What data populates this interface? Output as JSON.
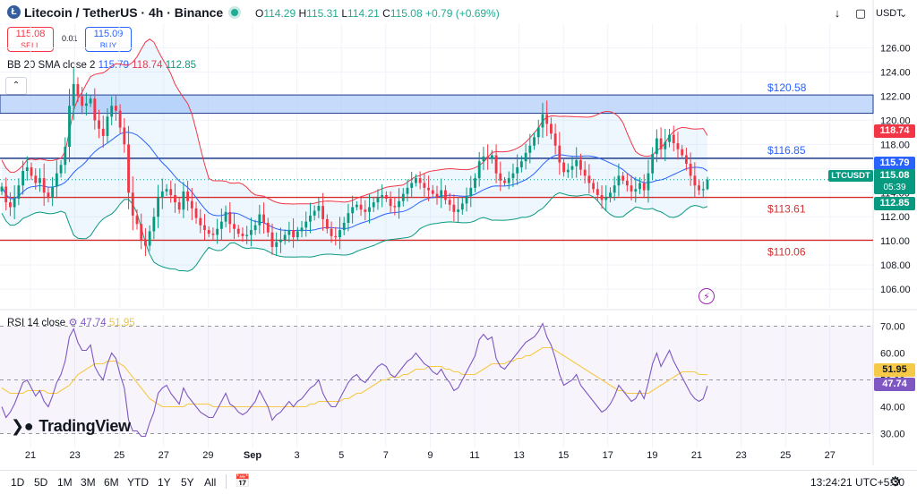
{
  "header": {
    "logo_letter": "Ł",
    "title": "Litecoin / TetherUS · 4h · Binance",
    "ohlc": [
      {
        "key": "O",
        "value": "114.29"
      },
      {
        "key": "H",
        "value": "115.31"
      },
      {
        "key": "L",
        "value": "114.21"
      },
      {
        "key": "C",
        "value": "115.08"
      }
    ],
    "change": "+0.79 (+0.69%)",
    "sell_price": "115.08",
    "sell_label": "SELL",
    "spread": "0.01",
    "buy_price": "115.09",
    "buy_label": "BUY",
    "currency": "USDT",
    "currency_arrow": "⌄"
  },
  "bb_legend": {
    "name": "BB 20 SMA close 2",
    "basis": "115.79",
    "upper": "118.74",
    "lower": "112.85"
  },
  "rsi_legend": {
    "name": "RSI 14 close",
    "rsi": "47.74",
    "ma": "51.95"
  },
  "price_labels": {
    "upper_band": "118.74",
    "basis": "115.79",
    "symbol": "LTCUSDT",
    "current": "115.08",
    "countdown": "05:39",
    "lower_band": "112.85",
    "rsi_ma": "51.95",
    "rsi": "47.74"
  },
  "brand": "TradingView",
  "timeframes": [
    "1D",
    "5D",
    "1M",
    "3M",
    "6M",
    "YTD",
    "1Y",
    "5Y",
    "All"
  ],
  "clock": "13:24:21 UTC+5:30",
  "icons": {
    "download": "download-icon",
    "fullscreen": "fullscreen-icon",
    "calendar": "calendar-icon",
    "gear": "gear-icon",
    "flash": "flash-icon",
    "collapse": "chevron-up-icon"
  },
  "colors": {
    "up": "#089981",
    "down": "#f23645",
    "bb_basis": "#2962ff",
    "bb_upper": "#f23645",
    "bb_lower": "#089981",
    "rsi": "#7e57c2",
    "rsi_ma": "#f7c948",
    "zone": "#aecbfa",
    "support": "#d32f2f"
  },
  "chart_data": [
    {
      "type": "candlestick",
      "y_ticks": [
        106,
        108,
        110,
        112,
        114,
        116,
        118,
        120,
        122,
        124,
        126
      ],
      "ylim": [
        104.6,
        127.3
      ],
      "x_ticks": [
        "21",
        "23",
        "25",
        "27",
        "29",
        "Sep",
        "3",
        "5",
        "7",
        "9",
        "11",
        "13",
        "15",
        "17",
        "19",
        "21",
        "23",
        "25",
        "27"
      ],
      "zone": {
        "from": 120.58,
        "to": 122.1,
        "label": "$120.58"
      },
      "levels": [
        {
          "value": 116.85,
          "label": "$116.85",
          "color": "#1e3a8a"
        },
        {
          "value": 113.61,
          "label": "$113.61",
          "color": "#d32f2f"
        },
        {
          "value": 110.06,
          "label": "$110.06",
          "color": "#d32f2f"
        }
      ],
      "close": [
        114.5,
        113.2,
        112.8,
        113.5,
        114.6,
        115.8,
        116.1,
        115.4,
        114.8,
        115.2,
        114.0,
        113.6,
        114.5,
        115.6,
        116.3,
        117.8,
        121.2,
        123.0,
        122.0,
        121.2,
        121.4,
        121.8,
        120.0,
        119.3,
        118.7,
        120.3,
        121.2,
        120.8,
        119.4,
        118.0,
        114.0,
        112.1,
        111.4,
        110.1,
        109.6,
        110.8,
        112.0,
        113.6,
        114.1,
        114.3,
        113.8,
        113.2,
        112.6,
        114.1,
        113.3,
        112.7,
        111.9,
        111.3,
        110.9,
        110.6,
        110.5,
        111.0,
        111.6,
        112.4,
        111.4,
        111.0,
        110.6,
        110.4,
        110.5,
        110.9,
        111.3,
        112.2,
        111.5,
        110.7,
        109.5,
        109.9,
        110.1,
        110.5,
        110.9,
        110.3,
        110.8,
        111.1,
        111.6,
        112.1,
        112.5,
        112.9,
        111.8,
        111.0,
        110.4,
        110.3,
        110.9,
        111.5,
        112.3,
        112.8,
        113.0,
        112.6,
        112.4,
        112.8,
        113.2,
        113.6,
        113.8,
        113.5,
        112.9,
        112.8,
        113.3,
        113.9,
        114.4,
        114.8,
        115.2,
        114.8,
        114.4,
        114.2,
        113.9,
        113.6,
        114.2,
        113.4,
        113.0,
        112.4,
        112.6,
        113.1,
        113.7,
        114.4,
        115.2,
        116.6,
        117.0,
        116.8,
        117.1,
        115.6,
        115.0,
        114.8,
        115.2,
        115.6,
        116.1,
        116.6,
        117.3,
        117.9,
        118.6,
        119.4,
        120.5,
        119.7,
        118.9,
        117.9,
        116.5,
        115.7,
        115.9,
        116.2,
        116.7,
        115.9,
        115.4,
        114.8,
        114.3,
        113.8,
        113.4,
        113.6,
        114.0,
        114.6,
        115.4,
        115.0,
        114.6,
        114.1,
        114.3,
        114.8,
        114.2,
        115.6,
        117.2,
        118.5,
        117.6,
        118.2,
        118.8,
        118.1,
        117.6,
        117.1,
        116.4,
        115.4,
        114.6,
        114.2,
        114.3,
        115.08
      ],
      "ohlc_last": {
        "open": 114.29,
        "high": 115.31,
        "low": 114.21,
        "close": 115.08
      },
      "bb_upper_last": 118.74,
      "bb_basis_last": 115.79,
      "bb_lower_last": 112.85
    },
    {
      "type": "line",
      "y_ticks": [
        30,
        40,
        50,
        60,
        70
      ],
      "ylim": [
        27.5,
        72.5
      ],
      "bands": [
        30,
        50,
        70
      ],
      "series": [
        {
          "name": "RSI",
          "values": [
            40,
            36,
            38,
            41,
            45,
            49,
            50,
            47,
            44,
            46,
            42,
            40,
            44,
            49,
            52,
            57,
            66,
            69,
            64,
            61,
            61,
            63,
            55,
            52,
            50,
            56,
            60,
            58,
            52,
            47,
            35,
            31,
            31,
            29,
            29,
            34,
            38,
            45,
            47,
            48,
            45,
            43,
            41,
            47,
            44,
            42,
            40,
            38,
            37,
            36,
            36,
            39,
            42,
            45,
            41,
            40,
            38,
            37,
            38,
            40,
            42,
            46,
            43,
            40,
            35,
            37,
            38,
            40,
            42,
            40,
            42,
            43,
            45,
            47,
            48,
            50,
            45,
            42,
            40,
            40,
            43,
            46,
            49,
            51,
            52,
            50,
            49,
            51,
            53,
            55,
            56,
            55,
            52,
            51,
            53,
            55,
            57,
            58,
            60,
            58,
            56,
            55,
            53,
            52,
            54,
            51,
            49,
            46,
            47,
            50,
            53,
            56,
            59,
            65,
            67,
            65,
            66,
            58,
            55,
            54,
            56,
            58,
            60,
            62,
            64,
            65,
            66,
            68,
            71,
            66,
            63,
            58,
            52,
            48,
            49,
            50,
            52,
            48,
            46,
            44,
            42,
            40,
            38,
            39,
            41,
            44,
            48,
            46,
            44,
            42,
            43,
            46,
            43,
            49,
            56,
            60,
            55,
            58,
            61,
            57,
            54,
            51,
            48,
            45,
            43,
            42,
            43,
            47.74
          ]
        },
        {
          "name": "RSI-based MA",
          "values": [
            47,
            46,
            45,
            45,
            45,
            45,
            46,
            46,
            46,
            46,
            46,
            45,
            45,
            45,
            46,
            47,
            48,
            50,
            52,
            53,
            54,
            55,
            56,
            56,
            56,
            57,
            57,
            57,
            56,
            55,
            53,
            51,
            49,
            47,
            45,
            43,
            42,
            41,
            40,
            40,
            40,
            40,
            40,
            40,
            41,
            41,
            41,
            41,
            41,
            41,
            40,
            40,
            40,
            40,
            40,
            40,
            40,
            40,
            40,
            40,
            40,
            40,
            40,
            40,
            40,
            40,
            40,
            40,
            40,
            40,
            40,
            40,
            40,
            41,
            41,
            42,
            42,
            42,
            42,
            42,
            42,
            43,
            43,
            44,
            45,
            45,
            46,
            47,
            48,
            49,
            50,
            50,
            51,
            51,
            51,
            52,
            52,
            53,
            54,
            54,
            54,
            55,
            55,
            55,
            55,
            54,
            54,
            53,
            53,
            52,
            52,
            52,
            52,
            53,
            54,
            55,
            56,
            56,
            56,
            56,
            57,
            57,
            58,
            58,
            59,
            59,
            60,
            61,
            62,
            62,
            62,
            61,
            60,
            59,
            58,
            57,
            56,
            55,
            54,
            53,
            52,
            51,
            50,
            49,
            48,
            47,
            46,
            46,
            45,
            45,
            45,
            45,
            45,
            45,
            46,
            47,
            48,
            49,
            50,
            51,
            52,
            53,
            53,
            53,
            53,
            52,
            52,
            51.95
          ]
        }
      ]
    }
  ]
}
